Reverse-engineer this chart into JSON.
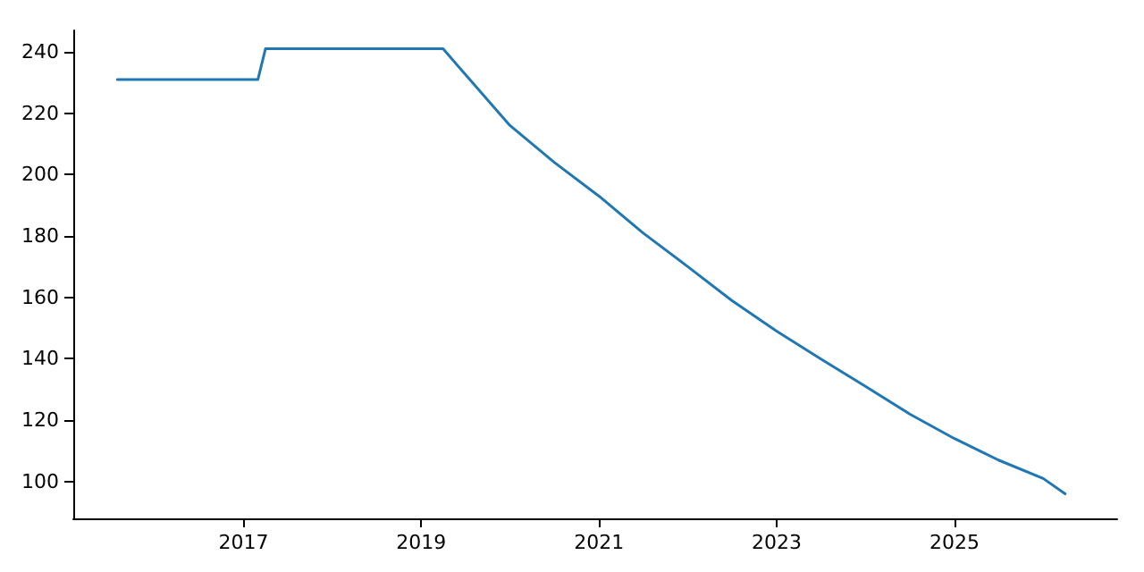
{
  "chart_data": {
    "type": "line",
    "x": [
      "2015-08",
      "2017-03",
      "2017-04",
      "2019-04",
      "2020-01",
      "2020-07",
      "2021-01",
      "2021-07",
      "2022-01",
      "2022-07",
      "2023-01",
      "2023-07",
      "2024-01",
      "2024-07",
      "2025-01",
      "2025-07",
      "2026-01",
      "2026-04"
    ],
    "series": [
      {
        "color": "#1f77b4",
        "values": [
          231,
          231,
          241,
          241,
          216,
          204,
          193,
          181,
          170,
          159,
          149,
          140,
          131,
          122,
          114,
          107,
          101,
          96
        ]
      }
    ],
    "xlim": [
      "2015-02",
      "2026-11"
    ],
    "xticks": [
      "2017",
      "2019",
      "2021",
      "2023",
      "2025"
    ],
    "ylim": [
      88,
      247
    ],
    "yticks": [
      100,
      120,
      140,
      160,
      180,
      200,
      220,
      240
    ],
    "grid": false,
    "marker": "none",
    "line_style": "solid"
  }
}
